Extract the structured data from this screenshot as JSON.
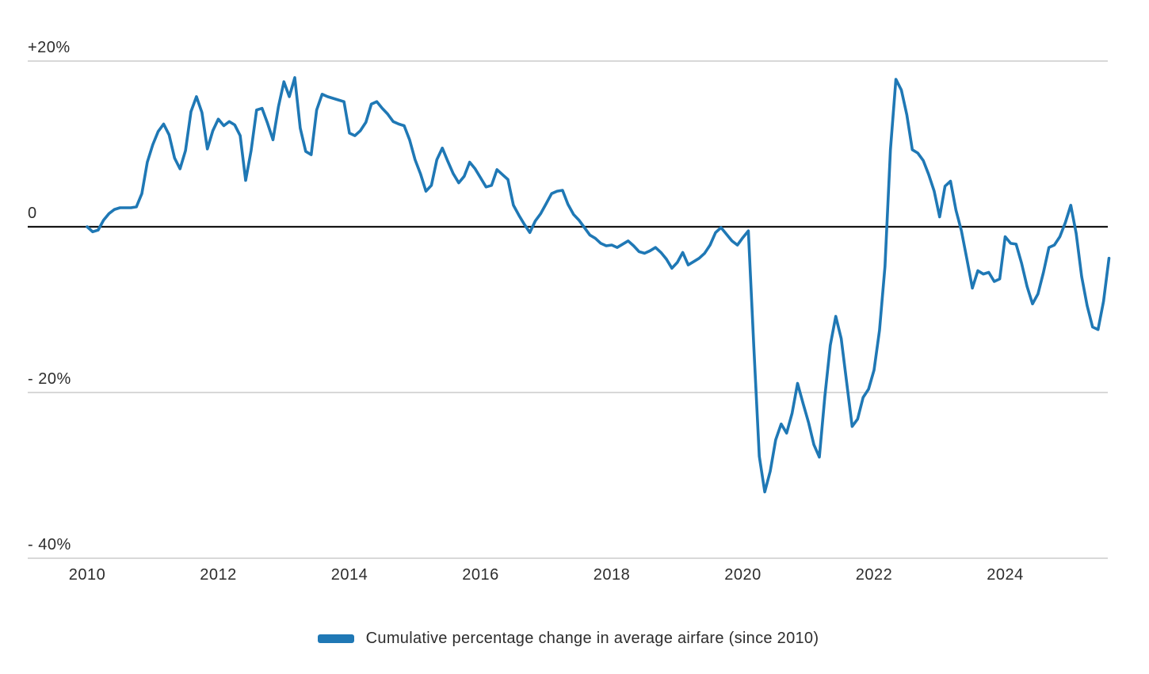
{
  "chart_data": {
    "type": "line",
    "title": "",
    "xlabel": "",
    "ylabel": "",
    "grid": true,
    "legend": {
      "position": "bottom",
      "label": "Cumulative percentage change in average airfare (since 2010)"
    },
    "x_axis": {
      "tick_labels": [
        "2010",
        "2012",
        "2014",
        "2016",
        "2018",
        "2020",
        "2022",
        "2024"
      ],
      "tick_interval_years": 2,
      "range_start": "2010-01",
      "range_end": "2025-08"
    },
    "y_axis": {
      "unit": "percent",
      "ylim": [
        -43,
        23
      ],
      "gridlines": [
        {
          "value": 20,
          "label": "+20%"
        },
        {
          "value": 0,
          "label": "0"
        },
        {
          "value": -20,
          "label": "- 20%"
        },
        {
          "value": -40,
          "label": "- 40%"
        }
      ]
    },
    "series": [
      {
        "name": "Cumulative percentage change in average airfare (since 2010)",
        "color": "#1f78b5",
        "start": "2010-01",
        "frequency": "monthly",
        "unit": "percent",
        "values": [
          0.0,
          -0.6,
          -0.4,
          0.8,
          1.6,
          2.1,
          2.3,
          2.3,
          2.3,
          2.4,
          4.0,
          7.8,
          9.9,
          11.5,
          12.4,
          11.1,
          8.3,
          7.0,
          9.2,
          13.9,
          15.7,
          13.8,
          9.4,
          11.6,
          13.0,
          12.2,
          12.7,
          12.3,
          11.0,
          5.6,
          9.2,
          14.1,
          14.3,
          12.5,
          10.5,
          14.5,
          17.5,
          15.7,
          18.0,
          11.9,
          9.1,
          8.7,
          14.1,
          16.0,
          15.7,
          15.5,
          15.3,
          15.1,
          11.3,
          11.0,
          11.6,
          12.6,
          14.8,
          15.1,
          14.3,
          13.6,
          12.7,
          12.4,
          12.2,
          10.5,
          8.1,
          6.4,
          4.3,
          5.0,
          8.1,
          9.5,
          7.9,
          6.4,
          5.3,
          6.1,
          7.8,
          7.0,
          5.9,
          4.8,
          5.0,
          6.9,
          6.3,
          5.7,
          2.6,
          1.4,
          0.3,
          -0.7,
          0.7,
          1.6,
          2.8,
          4.0,
          4.3,
          4.4,
          2.7,
          1.5,
          0.8,
          -0.1,
          -1.0,
          -1.4,
          -2.0,
          -2.3,
          -2.2,
          -2.5,
          -2.1,
          -1.7,
          -2.3,
          -3.0,
          -3.2,
          -2.9,
          -2.5,
          -3.1,
          -3.9,
          -5.0,
          -4.3,
          -3.1,
          -4.6,
          -4.2,
          -3.8,
          -3.2,
          -2.2,
          -0.7,
          -0.1,
          -0.9,
          -1.7,
          -2.2,
          -1.3,
          -0.5,
          -14.5,
          -27.7,
          -32.0,
          -29.5,
          -25.7,
          -23.8,
          -24.9,
          -22.5,
          -18.9,
          -21.3,
          -23.6,
          -26.3,
          -27.8,
          -20.5,
          -14.3,
          -10.8,
          -13.5,
          -18.8,
          -24.1,
          -23.2,
          -20.6,
          -19.6,
          -17.3,
          -12.5,
          -4.8,
          9.3,
          17.8,
          16.5,
          13.5,
          9.3,
          8.9,
          8.0,
          6.3,
          4.3,
          1.2,
          4.9,
          5.5,
          2.0,
          -0.5,
          -3.9,
          -7.4,
          -5.3,
          -5.7,
          -5.5,
          -6.6,
          -6.3,
          -1.2,
          -2.0,
          -2.1,
          -4.4,
          -7.2,
          -9.3,
          -8.1,
          -5.5,
          -2.5,
          -2.2,
          -1.2,
          0.5,
          2.6,
          -0.8,
          -6.0,
          -9.5,
          -12.1,
          -12.4,
          -9.0,
          -3.8
        ]
      }
    ]
  }
}
